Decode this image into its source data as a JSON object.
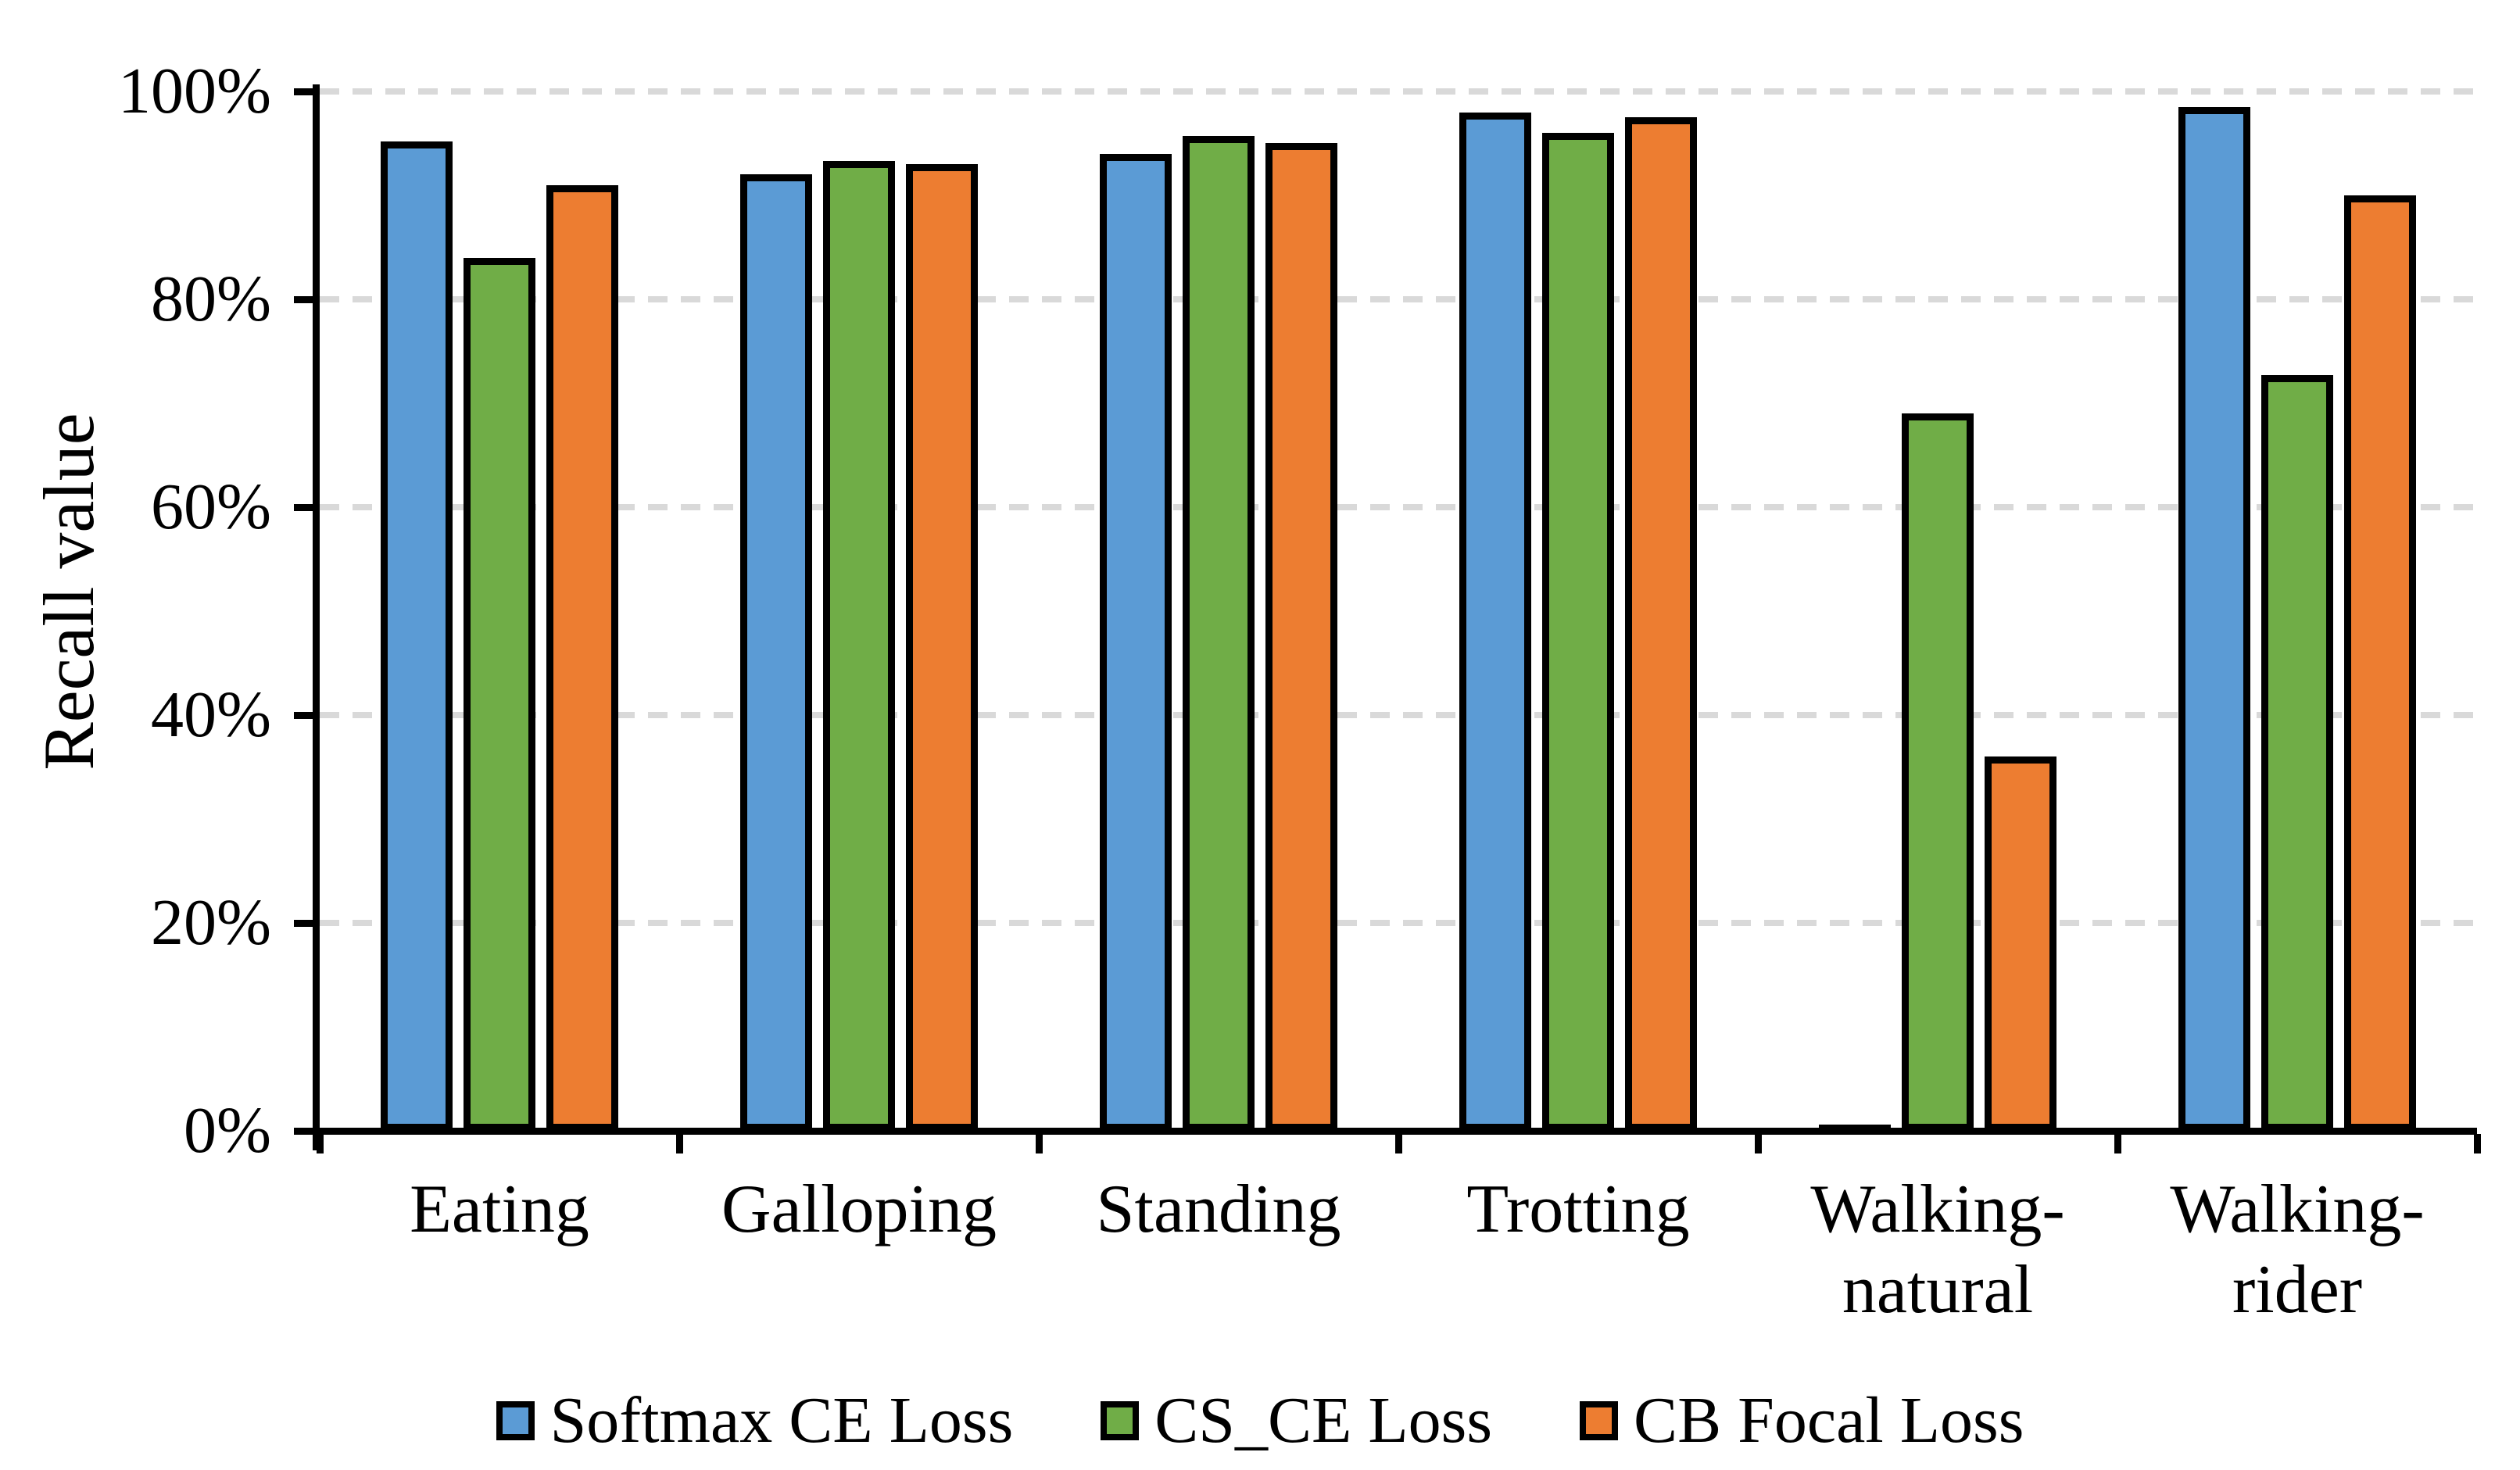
{
  "chart_data": {
    "type": "bar",
    "title": "",
    "ylabel": "Recall value",
    "xlabel": "",
    "categories": [
      "Eating",
      "Galloping",
      "Standing",
      "Trotting",
      "Walking-\nnatural",
      "Walking-\nrider"
    ],
    "series": [
      {
        "name": "Softmax CE Loss",
        "color": "#5B9BD5",
        "values": [
          95.2,
          92.0,
          94.0,
          98.0,
          0.3,
          98.5
        ]
      },
      {
        "name": "CS_CE Loss",
        "color": "#70AD47",
        "values": [
          84.0,
          93.3,
          95.7,
          96.0,
          69.0,
          72.7
        ]
      },
      {
        "name": "CB Focal Loss",
        "color": "#ED7D31",
        "values": [
          91.0,
          93.0,
          95.0,
          97.5,
          36.0,
          90.0
        ]
      }
    ],
    "y_axis": {
      "min": 0,
      "max": 100,
      "step": 20,
      "tick_labels": [
        "0%",
        "20%",
        "40%",
        "60%",
        "80%",
        "100%"
      ],
      "unit": "percent"
    },
    "grid": "horizontal-dashed",
    "legend_position": "bottom",
    "colors": {
      "axis": "#000000",
      "gridline": "#D9D9D9",
      "bar_outline": "#000000",
      "background": "#FFFFFF",
      "text": "#000000"
    }
  }
}
